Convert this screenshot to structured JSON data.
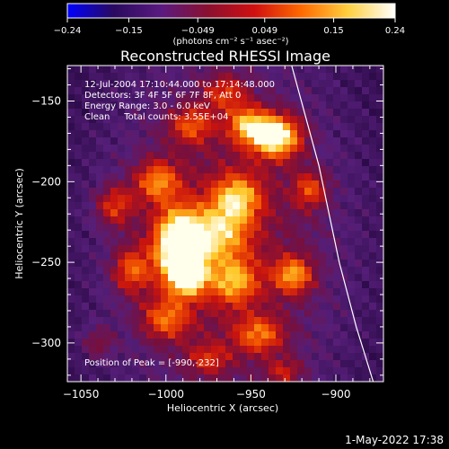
{
  "chart_data": {
    "type": "heatmap",
    "title": "Reconstructed RHESSI Image",
    "xlabel": "Heliocentric X (arcsec)",
    "ylabel": "Heliocentric Y (arcsec)",
    "xlim": [
      -1058,
      -872
    ],
    "ylim": [
      -324,
      -128
    ],
    "x_ticks": [
      -1050,
      -1000,
      -950,
      -900
    ],
    "y_ticks": [
      -150,
      -200,
      -250,
      -300
    ],
    "colorbar": {
      "min": -0.24,
      "max": 0.24,
      "ticks": [
        "-0.24",
        "-0.15",
        "-0.049",
        "0.049",
        "0.15",
        "0.24"
      ],
      "unit_label": "(photons cm⁻² s⁻¹ asec⁻²)",
      "colormap": [
        "#0000ff",
        "#2a0a5e",
        "#5a1a80",
        "#8a1030",
        "#d01010",
        "#ff6a00",
        "#ffd040",
        "#ffffff"
      ]
    },
    "annotations": [
      "12-Jul-2004 17:10:44.000 to 17:14:48.000",
      "Detectors: 3F 4F 5F 6F 7F 8F, Att 0",
      "Energy Range: 3.0 - 6.0 keV",
      "Clean     Total counts: 3.55E+04"
    ],
    "peak_label": "Position of Peak = [-990,-232]",
    "peak": {
      "x": -990,
      "y": -232
    },
    "limb": [
      [
        -926,
        -128
      ],
      [
        -910,
        -190
      ],
      [
        -898,
        -250
      ],
      [
        -888,
        -290
      ],
      [
        -878,
        -324
      ]
    ],
    "sources": [
      {
        "x": -992,
        "y": -238,
        "amp": 1.0,
        "sx": 10,
        "sy": 14
      },
      {
        "x": -988,
        "y": -258,
        "amp": 0.8,
        "sx": 8,
        "sy": 9
      },
      {
        "x": -935,
        "y": -172,
        "amp": 0.85,
        "sx": 10,
        "sy": 9
      },
      {
        "x": -952,
        "y": -165,
        "amp": 0.55,
        "sx": 8,
        "sy": 8
      },
      {
        "x": -958,
        "y": -210,
        "amp": 0.55,
        "sx": 10,
        "sy": 10
      },
      {
        "x": -925,
        "y": -258,
        "amp": 0.55,
        "sx": 8,
        "sy": 8
      },
      {
        "x": -960,
        "y": -262,
        "amp": 0.5,
        "sx": 10,
        "sy": 10
      },
      {
        "x": -968,
        "y": -232,
        "amp": 0.5,
        "sx": 12,
        "sy": 12
      },
      {
        "x": -1005,
        "y": -200,
        "amp": 0.5,
        "sx": 9,
        "sy": 9
      },
      {
        "x": -1000,
        "y": -285,
        "amp": 0.45,
        "sx": 10,
        "sy": 9
      },
      {
        "x": -945,
        "y": -295,
        "amp": 0.45,
        "sx": 10,
        "sy": 8
      },
      {
        "x": -1020,
        "y": -255,
        "amp": 0.45,
        "sx": 8,
        "sy": 10
      },
      {
        "x": -1030,
        "y": -215,
        "amp": 0.4,
        "sx": 8,
        "sy": 9
      },
      {
        "x": -985,
        "y": -165,
        "amp": 0.4,
        "sx": 9,
        "sy": 8
      },
      {
        "x": -965,
        "y": -145,
        "amp": 0.35,
        "sx": 9,
        "sy": 8
      },
      {
        "x": -915,
        "y": -205,
        "amp": 0.4,
        "sx": 7,
        "sy": 8
      },
      {
        "x": -930,
        "y": -318,
        "amp": 0.3,
        "sx": 8,
        "sy": 6
      },
      {
        "x": -1040,
        "y": -300,
        "amp": 0.25,
        "sx": 7,
        "sy": 7
      },
      {
        "x": -975,
        "y": -310,
        "amp": 0.3,
        "sx": 9,
        "sy": 7
      }
    ]
  },
  "timestamp": "1-May-2022 17:38"
}
